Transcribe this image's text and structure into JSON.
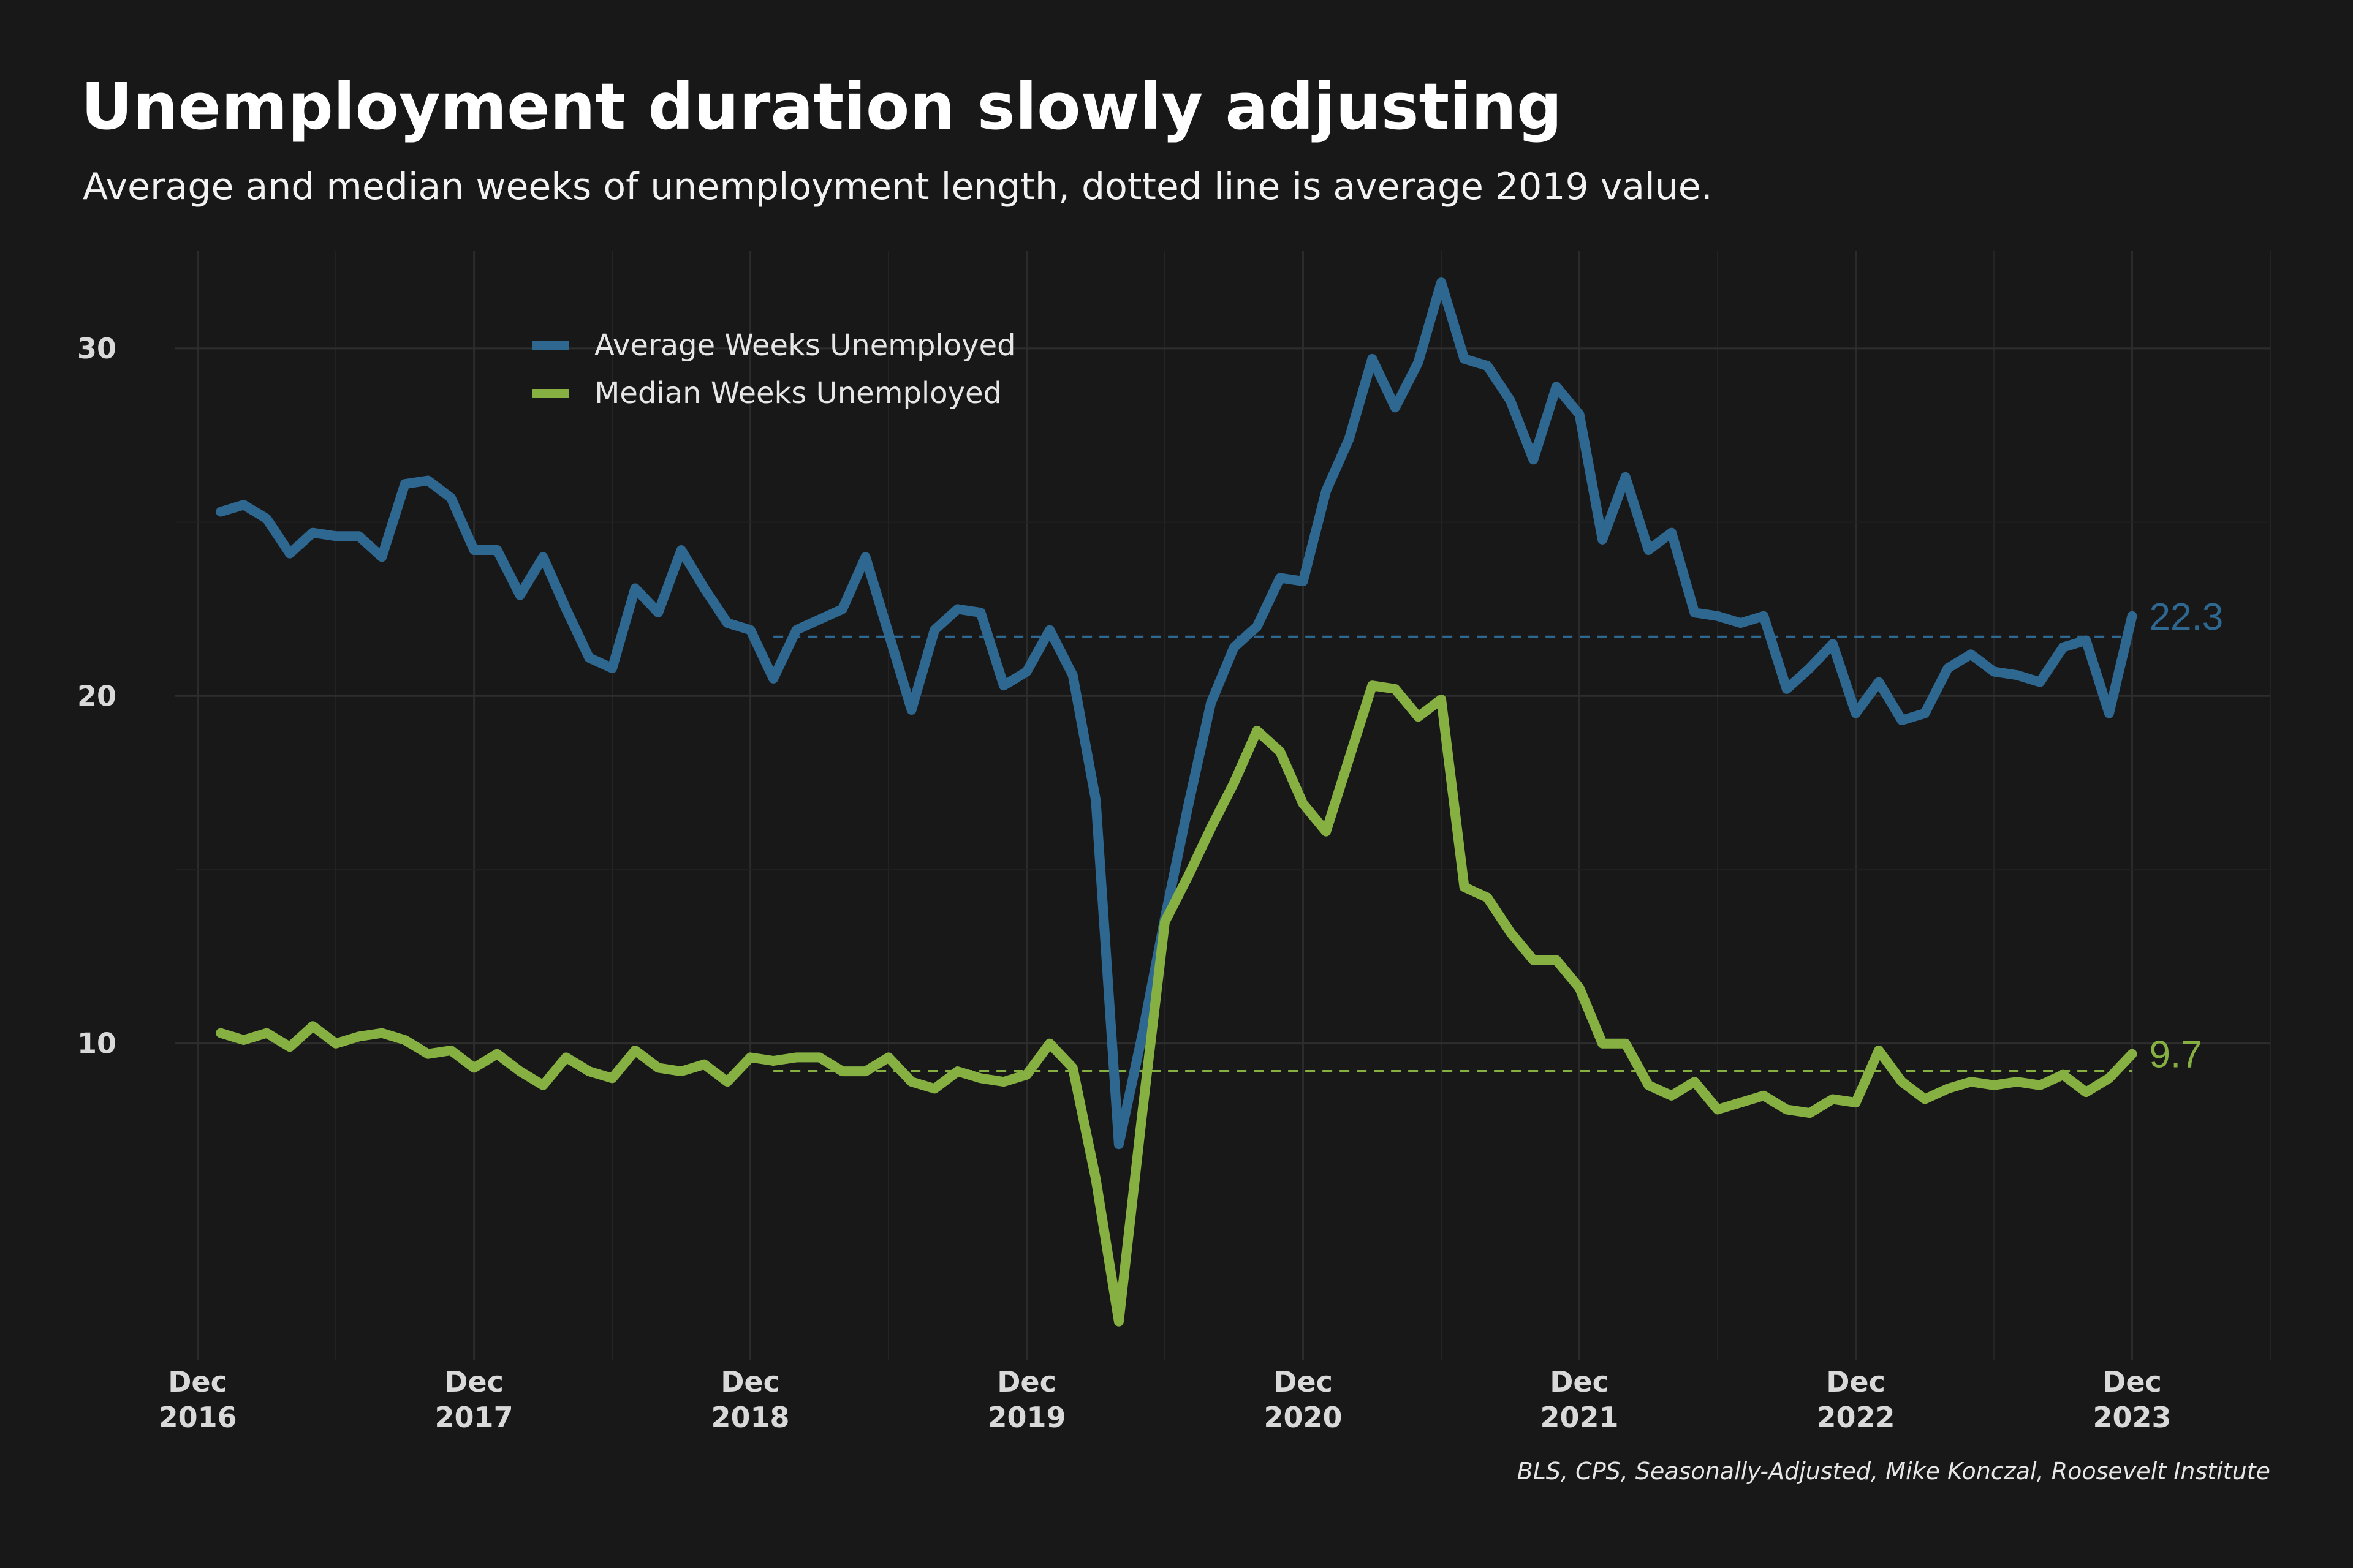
{
  "chart_data": {
    "type": "line",
    "title": "Unemployment duration slowly adjusting",
    "subtitle": "Average and median weeks of unemployment length, dotted line is average 2019 value.",
    "caption": "BLS, CPS, Seasonally-Adjusted, Mike Konczal, Roosevelt Institute",
    "x_ticks": [
      {
        "month": "Dec",
        "year": "2016"
      },
      {
        "month": "Dec",
        "year": "2017"
      },
      {
        "month": "Dec",
        "year": "2018"
      },
      {
        "month": "Dec",
        "year": "2019"
      },
      {
        "month": "Dec",
        "year": "2020"
      },
      {
        "month": "Dec",
        "year": "2021"
      },
      {
        "month": "Dec",
        "year": "2022"
      },
      {
        "month": "Dec",
        "year": "2023"
      }
    ],
    "y_ticks": [
      "10",
      "20",
      "30"
    ],
    "xlim": [
      "2016-11",
      "2024-06"
    ],
    "ylim": [
      0.9,
      32.8
    ],
    "grid": true,
    "legend_position": "top-left",
    "x_start": "2017-01",
    "x_end": "2024-01",
    "series": [
      {
        "name": "Average Weeks Unemployed",
        "color": "#2e6790",
        "end_label": "22.3",
        "reference_label": "average 2019",
        "reference_value": 21.7,
        "reference_start": "2019-01",
        "values": [
          25.3,
          25.5,
          25.1,
          24.1,
          24.7,
          24.6,
          24.6,
          24.0,
          26.1,
          26.2,
          25.7,
          24.2,
          24.2,
          22.9,
          24.0,
          22.5,
          21.1,
          20.8,
          23.1,
          22.4,
          24.2,
          23.1,
          22.1,
          21.9,
          20.5,
          21.9,
          22.2,
          22.5,
          24.0,
          21.8,
          19.6,
          21.9,
          22.5,
          22.4,
          20.3,
          20.7,
          21.9,
          20.6,
          17.0,
          7.1,
          10.2,
          13.6,
          16.8,
          19.8,
          21.4,
          22.0,
          23.4,
          23.3,
          25.9,
          27.4,
          29.7,
          28.3,
          29.6,
          31.9,
          29.7,
          29.5,
          28.5,
          26.8,
          28.9,
          28.1,
          24.5,
          26.3,
          24.2,
          24.7,
          22.4,
          22.3,
          22.1,
          22.3,
          20.2,
          20.8,
          21.5,
          19.5,
          20.4,
          19.3,
          19.5,
          20.8,
          21.2,
          20.7,
          20.6,
          20.4,
          21.4,
          21.6,
          19.5,
          22.3
        ]
      },
      {
        "name": "Median Weeks Unemployed",
        "color": "#86b042",
        "end_label": "9.7",
        "reference_label": "average 2019",
        "reference_value": 9.2,
        "reference_start": "2019-01",
        "values": [
          10.3,
          10.1,
          10.3,
          9.9,
          10.5,
          10.0,
          10.2,
          10.3,
          10.1,
          9.7,
          9.8,
          9.3,
          9.7,
          9.2,
          8.8,
          9.6,
          9.2,
          9.0,
          9.8,
          9.3,
          9.2,
          9.4,
          8.9,
          9.6,
          9.5,
          9.6,
          9.6,
          9.2,
          9.2,
          9.6,
          8.9,
          8.7,
          9.2,
          9.0,
          8.9,
          9.1,
          10.0,
          9.3,
          6.1,
          2.0,
          7.9,
          13.5,
          14.8,
          16.2,
          17.5,
          19.0,
          18.4,
          16.9,
          16.1,
          18.2,
          20.3,
          20.2,
          19.4,
          19.9,
          14.5,
          14.2,
          13.2,
          12.4,
          12.4,
          11.6,
          10.0,
          10.0,
          8.8,
          8.5,
          8.9,
          8.1,
          8.3,
          8.5,
          8.1,
          8.0,
          8.4,
          8.3,
          9.8,
          8.9,
          8.4,
          8.7,
          8.9,
          8.8,
          8.9,
          8.8,
          9.1,
          8.6,
          9.0,
          9.7
        ]
      }
    ]
  }
}
